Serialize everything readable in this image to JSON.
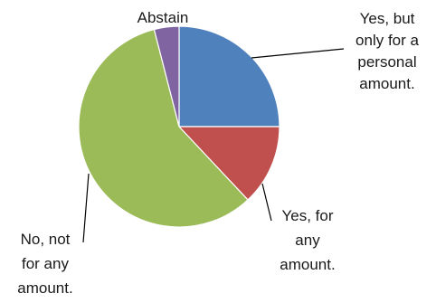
{
  "chart_data": {
    "type": "pie",
    "title": "",
    "start_angle_deg": 0,
    "direction": "clockwise",
    "slices": [
      {
        "key": "yes-personal",
        "label_lines": [
          "Yes, but",
          "only for a",
          "personal",
          "amount."
        ],
        "value": 25,
        "color": "#4f81bd"
      },
      {
        "key": "yes-any",
        "label_lines": [
          "Yes, for",
          "any",
          "amount."
        ],
        "value": 13,
        "color": "#c0504d"
      },
      {
        "key": "no-any",
        "label_lines": [
          "No, not",
          "for any",
          "amount."
        ],
        "value": 58,
        "color": "#9bbb59"
      },
      {
        "key": "abstain",
        "label_lines": [
          "Abstain"
        ],
        "value": 4,
        "color": "#8064a2"
      }
    ]
  }
}
